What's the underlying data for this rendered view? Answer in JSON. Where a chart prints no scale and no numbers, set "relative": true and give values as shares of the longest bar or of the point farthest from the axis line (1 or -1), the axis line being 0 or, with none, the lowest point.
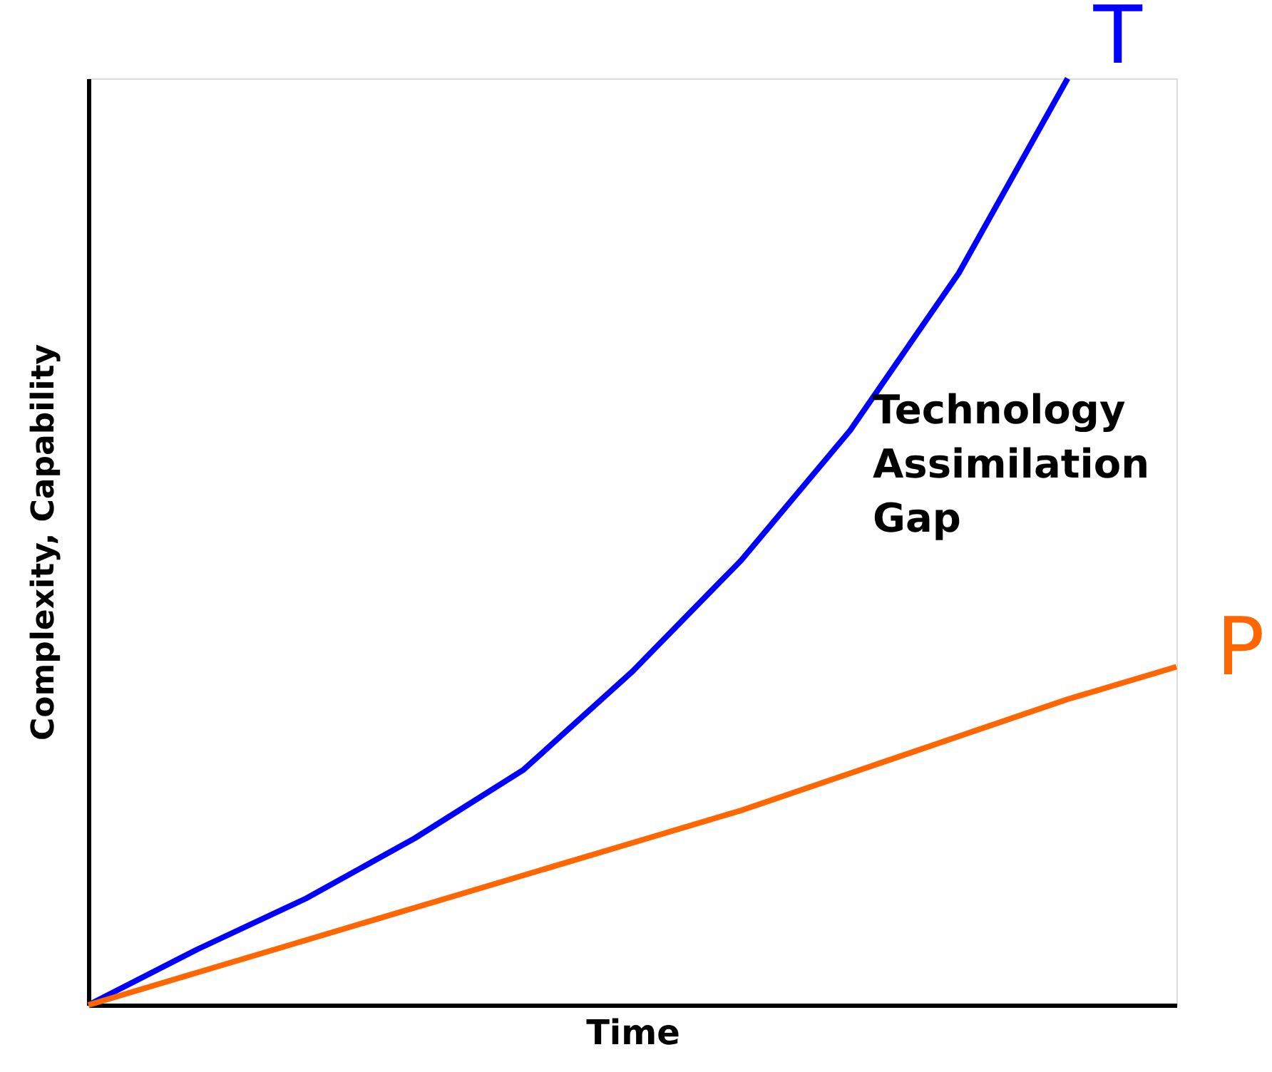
{
  "chart_data": {
    "type": "line",
    "relative": true,
    "xlabel": "Time",
    "ylabel": "Complexity, Capability",
    "categories": [
      null,
      null,
      null,
      null,
      null,
      null,
      null,
      null,
      null,
      null,
      null
    ],
    "series": [
      {
        "name": "T",
        "color": "#0000ff",
        "values": [
          0,
          0.06,
          0.115,
          0.18,
          0.254,
          0.36,
          0.48,
          0.62,
          0.79,
          1,
          null
        ]
      },
      {
        "name": "P",
        "color": "#ff6600",
        "values": [
          0,
          0.035,
          0.07,
          0.105,
          0.14,
          0.175,
          0.21,
          0.25,
          0.29,
          0.33,
          0.365
        ]
      }
    ],
    "annotations": [
      "Technology\nAssimilation\nGap"
    ],
    "grid": false,
    "legend": false,
    "marker": "none",
    "line_style": "solid"
  }
}
